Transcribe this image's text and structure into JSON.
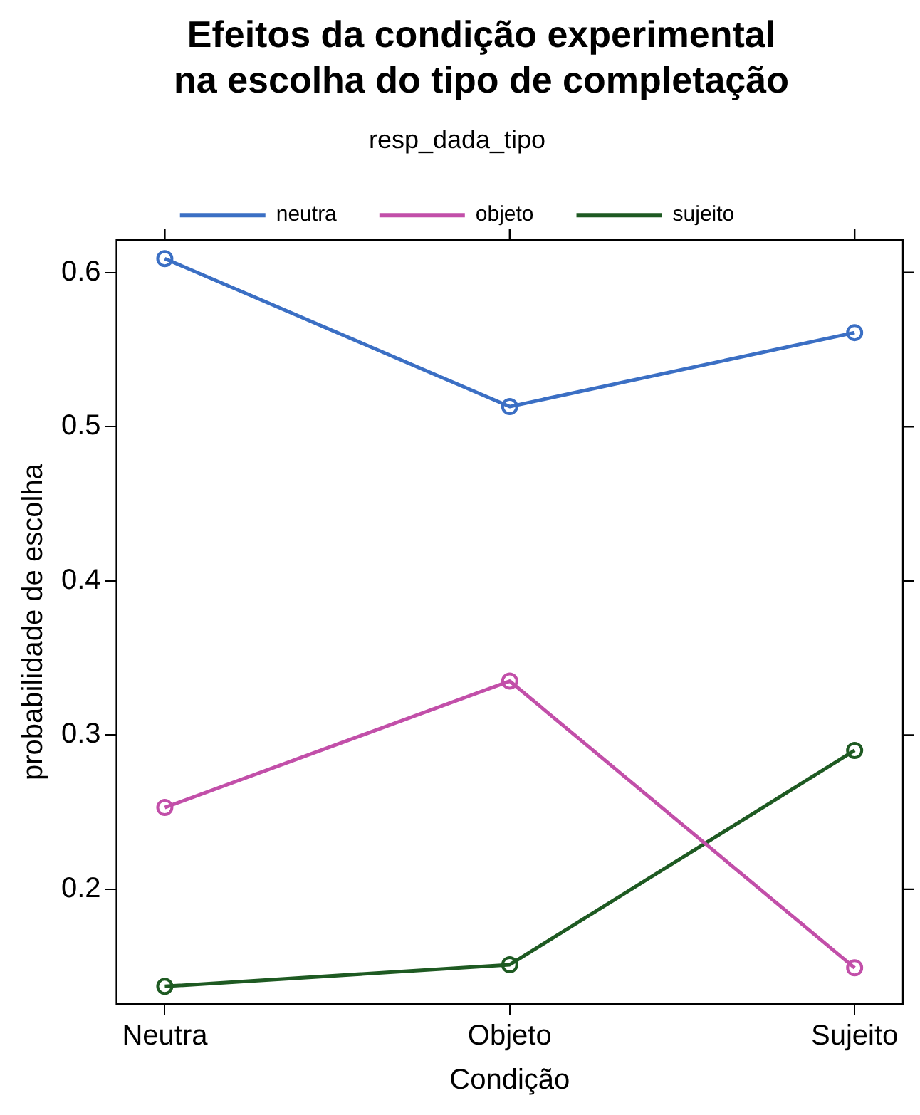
{
  "chart_data": {
    "type": "line",
    "title": "Efeitos da condição experimental\nna escolha do tipo de completação",
    "legend_title": "resp_dada_tipo",
    "xlabel": "Condição",
    "ylabel": "probabilidade de escolha",
    "categories": [
      "Neutra",
      "Objeto",
      "Sujeito"
    ],
    "series": [
      {
        "name": "neutra",
        "color": "#3b6fc4",
        "values": [
          0.609,
          0.513,
          0.561
        ]
      },
      {
        "name": "objeto",
        "color": "#c24fa9",
        "values": [
          0.253,
          0.335,
          0.149
        ]
      },
      {
        "name": "sujeito",
        "color": "#1e5a22",
        "values": [
          0.137,
          0.151,
          0.29
        ]
      }
    ],
    "ylim": [
      0.1256,
      0.621
    ],
    "yticks": [
      0.2,
      0.3,
      0.4,
      0.5,
      0.6
    ],
    "grid": false,
    "legend": "top",
    "marker": "circle",
    "line_style": "solid"
  }
}
